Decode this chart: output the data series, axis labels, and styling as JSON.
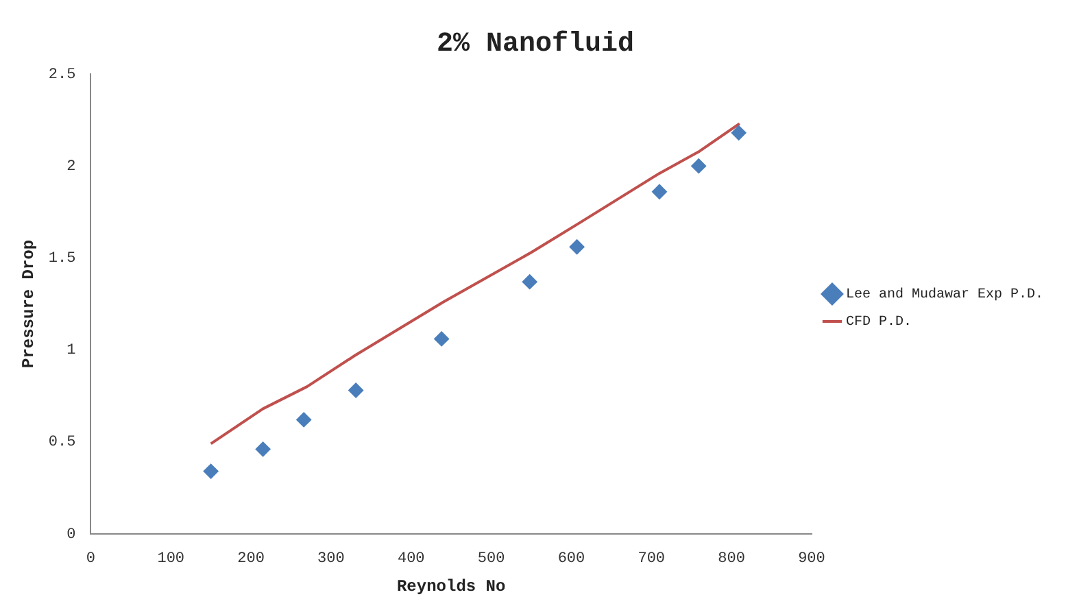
{
  "chart_data": {
    "type": "scatter",
    "title": "2% Nanofluid",
    "xlabel": "Reynolds No",
    "ylabel": "Pressure Drop",
    "xlim": [
      0,
      900
    ],
    "xticks": [
      0,
      100,
      200,
      300,
      400,
      500,
      600,
      700,
      800,
      900
    ],
    "ylim": [
      0,
      2.5
    ],
    "yticks": [
      0,
      0.5,
      1,
      1.5,
      2,
      2.5
    ],
    "grid": false,
    "legend": "right",
    "series": [
      {
        "name": "Lee and Mudawar Exp P.D.",
        "type": "scatter",
        "marker": "diamond",
        "color": "#4a7ebb",
        "x": [
          150,
          215,
          266,
          331,
          438,
          548,
          607,
          710,
          759,
          809
        ],
        "values": [
          0.34,
          0.46,
          0.62,
          0.78,
          1.06,
          1.37,
          1.56,
          1.86,
          2.0,
          2.18
        ]
      },
      {
        "name": "CFD P.D.",
        "type": "line",
        "marker": "none",
        "line_style": "solid",
        "color": "#c0504d",
        "x": [
          150,
          215,
          270,
          330,
          440,
          550,
          610,
          710,
          760,
          810
        ],
        "values": [
          0.49,
          0.68,
          0.8,
          0.97,
          1.26,
          1.53,
          1.69,
          1.96,
          2.08,
          2.23
        ]
      }
    ]
  }
}
